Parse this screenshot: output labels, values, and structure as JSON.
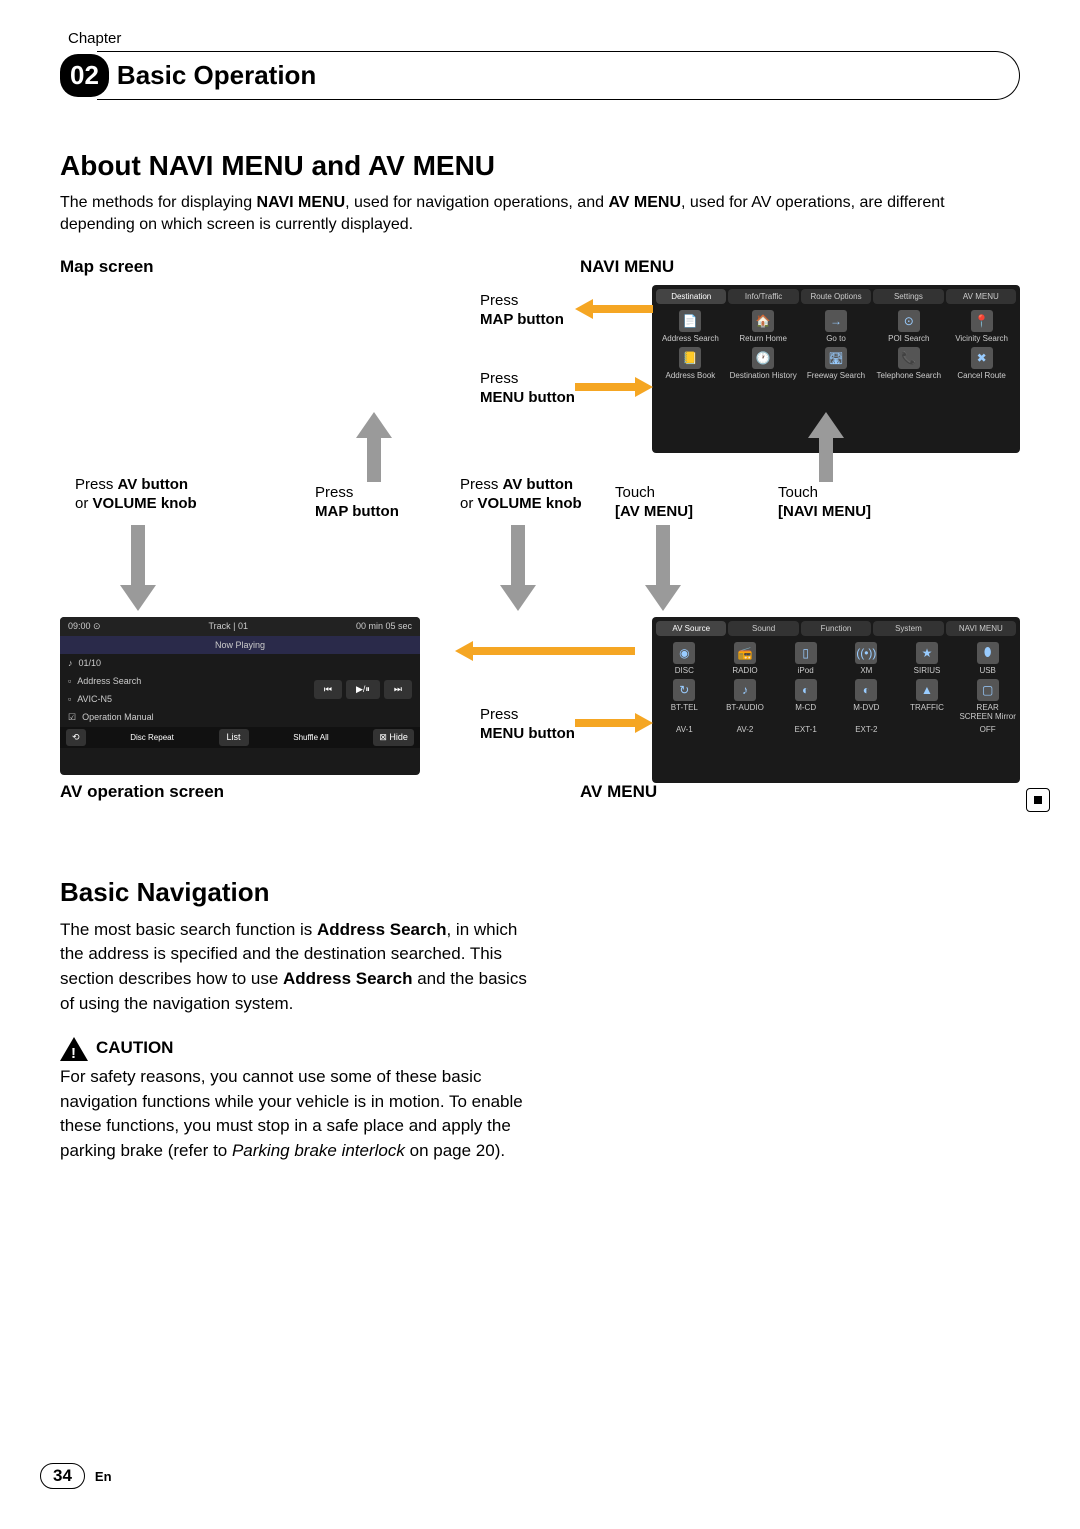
{
  "chapter": {
    "label": "Chapter",
    "number": "02",
    "title": "Basic Operation"
  },
  "main_heading": "About NAVI MENU and AV MENU",
  "intro_parts": {
    "p1": "The methods for displaying ",
    "b1": "NAVI MENU",
    "p2": ", used for navigation operations, and ",
    "b2": "AV MENU",
    "p3": ", used for AV operations, are different depending on which screen is currently displayed."
  },
  "labels": {
    "map_screen": "Map screen",
    "navi_menu": "NAVI MENU",
    "av_op": "AV operation screen",
    "av_menu": "AV MENU"
  },
  "actions": {
    "press": "Press",
    "touch": "Touch",
    "or": "or ",
    "map_btn": "MAP button",
    "menu_btn": "MENU button",
    "av_btn": "AV button",
    "vol_knob": "VOLUME knob",
    "av_menu_tag": "[AV MENU]",
    "navi_menu_tag": "[NAVI MENU]",
    "press_line": "Press "
  },
  "navi_menu": {
    "tabs": [
      "Destination",
      "Info/Traffic",
      "Route Options",
      "Settings",
      "AV MENU"
    ],
    "items": [
      {
        "icon": "📄",
        "label": "Address Search"
      },
      {
        "icon": "🏠",
        "label": "Return Home"
      },
      {
        "icon": "→",
        "label": "Go to"
      },
      {
        "icon": "⊙",
        "label": "POI Search"
      },
      {
        "icon": "📍",
        "label": "Vicinity Search"
      },
      {
        "icon": "📒",
        "label": "Address Book"
      },
      {
        "icon": "🕐",
        "label": "Destination History"
      },
      {
        "icon": "🛣",
        "label": "Freeway Search"
      },
      {
        "icon": "📞",
        "label": "Telephone Search"
      },
      {
        "icon": "✖",
        "label": "Cancel Route"
      }
    ]
  },
  "av_op": {
    "header_left": "09:00 ⊙",
    "header_mid": "Track | 01",
    "header_right": "00 min  05 sec",
    "now_playing": "Now Playing",
    "track": "01/10",
    "rows": [
      "Address Search",
      "AVIC-N5",
      "Operation Manual"
    ],
    "btns": [
      "⏮",
      "▶/⏸",
      "⏭"
    ],
    "bottom": [
      "⟲",
      "Disc Repeat",
      "List",
      "Shuffle All",
      "⊠ Hide"
    ]
  },
  "av_menu": {
    "tabs": [
      "AV Source",
      "Sound",
      "Function",
      "System",
      "NAVI MENU"
    ],
    "items": [
      {
        "icon": "◉",
        "label": "DISC"
      },
      {
        "icon": "📻",
        "label": "RADIO"
      },
      {
        "icon": "▯",
        "label": "iPod"
      },
      {
        "icon": "((•))",
        "label": "XM"
      },
      {
        "icon": "★",
        "label": "SIRIUS"
      },
      {
        "icon": "⬮",
        "label": "USB"
      },
      {
        "icon": "↻",
        "label": "BT-TEL"
      },
      {
        "icon": "♪",
        "label": "BT-AUDIO"
      },
      {
        "icon": "◐",
        "label": "M-CD"
      },
      {
        "icon": "◐",
        "label": "M-DVD"
      },
      {
        "icon": "▲",
        "label": "TRAFFIC"
      },
      {
        "icon": "▢",
        "label": "REAR SCREEN Mirror"
      },
      {
        "icon": "",
        "label": "AV-1"
      },
      {
        "icon": "",
        "label": "AV-2"
      },
      {
        "icon": "",
        "label": "EXT-1"
      },
      {
        "icon": "",
        "label": "EXT-2"
      },
      {
        "icon": "",
        "label": ""
      },
      {
        "icon": "",
        "label": "OFF"
      }
    ]
  },
  "nav_heading": "Basic Navigation",
  "nav_body": {
    "p1": "The most basic search function is ",
    "b1": "Address Search",
    "p2": ", in which the address is specified and the destination searched. This section describes how to use ",
    "b2": "Address Search",
    "p3": " and the basics of using the navigation system."
  },
  "caution": {
    "label": "CAUTION",
    "body_p1": "For safety reasons, you cannot use some of these basic navigation functions while your vehicle is in motion. To enable these functions, you must stop in a safe place and apply the parking brake (refer to ",
    "body_i": "Parking brake interlock",
    "body_p2": " on page 20)."
  },
  "footer": {
    "page": "34",
    "lang": "En"
  },
  "colors": {
    "yellow": "#f5a623",
    "gray": "#9a9a9a",
    "black": "#000000"
  }
}
